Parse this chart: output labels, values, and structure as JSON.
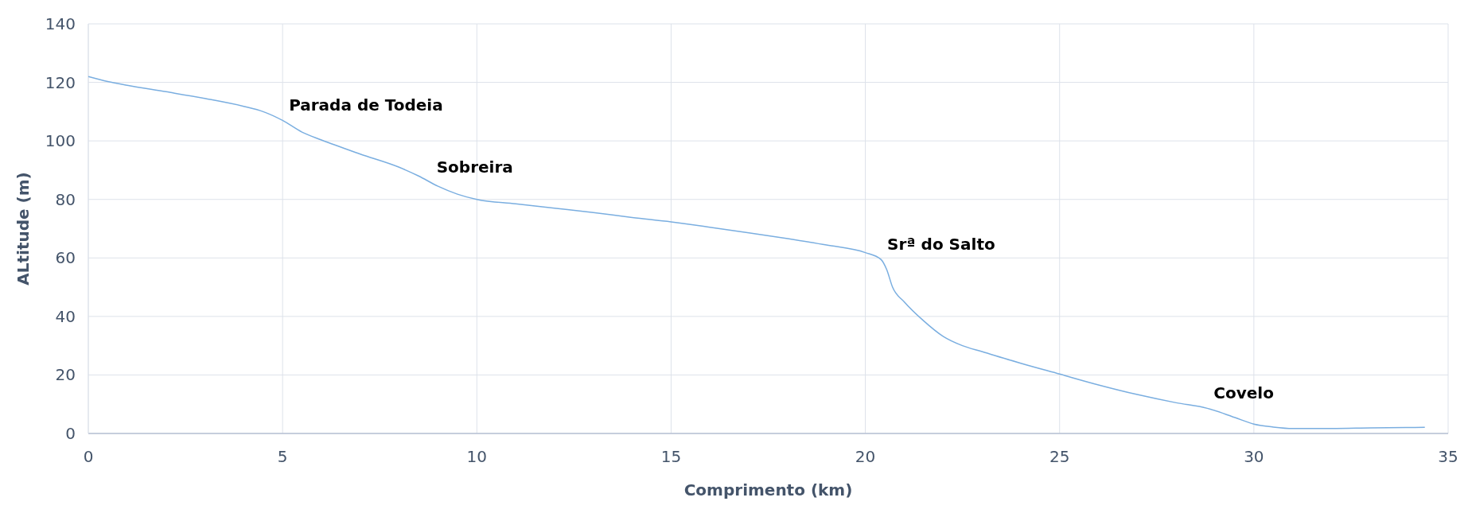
{
  "chart_data": {
    "type": "line",
    "xlabel": "Comprimento (km)",
    "ylabel": "ALtitude (m)",
    "x": [
      0,
      0.5,
      1,
      2,
      3,
      4,
      4.5,
      5,
      5.5,
      6,
      7,
      8,
      8.5,
      9,
      9.5,
      10,
      11,
      12,
      13,
      14,
      15,
      16,
      17,
      18,
      19,
      20,
      20.4,
      20.55,
      20.7,
      21,
      21.5,
      22,
      22.5,
      23,
      24,
      25,
      26,
      27,
      28,
      28.8,
      29.5,
      30,
      30.5,
      31,
      32,
      33,
      34.4
    ],
    "series": [
      {
        "color": "#7aaee0",
        "values": [
          122,
          120.3,
          119,
          116.8,
          114.5,
          111.8,
          110,
          107,
          103,
          100.3,
          95.5,
          91,
          88,
          84.5,
          81.8,
          80,
          78.5,
          77,
          75.5,
          73.8,
          72.3,
          70.5,
          68.6,
          66.6,
          64.4,
          61.8,
          59.5,
          56,
          50,
          45,
          38.5,
          33.2,
          30,
          28,
          24,
          20.3,
          16.6,
          13.3,
          10.5,
          8.6,
          5.5,
          3.2,
          2.2,
          1.7,
          1.7,
          1.9,
          2.1
        ]
      }
    ],
    "xlim": [
      0,
      35
    ],
    "xticks": [
      0,
      5,
      10,
      15,
      20,
      25,
      30,
      35
    ],
    "ylim": [
      0,
      140
    ],
    "yticks": [
      0,
      20,
      40,
      60,
      80,
      100,
      120,
      140
    ],
    "grid": true,
    "marker": "none",
    "line_style": "solid",
    "annotations": [
      {
        "text": "Parada de Todeia",
        "x": 5,
        "y": 107
      },
      {
        "text": "Sobreira",
        "x": 8.8,
        "y": 86
      },
      {
        "text": "Srª do Salto",
        "x": 20.4,
        "y": 59.5
      },
      {
        "text": "Covelo",
        "x": 28.8,
        "y": 8.6
      }
    ]
  }
}
